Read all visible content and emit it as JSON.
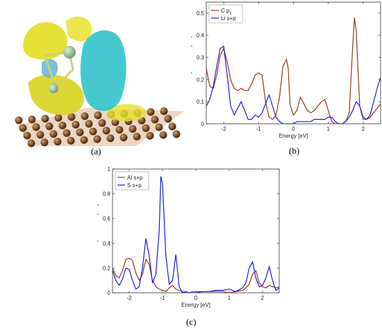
{
  "panel_labels": {
    "a": "(a)",
    "b": "(b)",
    "c": "(c)"
  },
  "colors": {
    "brown": "#8b3a1a",
    "blue": "#1a1ad6",
    "yellow": "#e6e000",
    "cyan": "#27c2c8",
    "atom": "#8a5a2c"
  },
  "chart_data": [
    {
      "id": "b",
      "type": "line",
      "xlabel": "Energy [eV]",
      "ylabel": "Density of states [a.u]",
      "xlim": [
        -2.5,
        2.5
      ],
      "ylim": [
        0,
        0.55
      ],
      "xticks": [
        "-2",
        "-1",
        "0",
        "1",
        "2"
      ],
      "xtick_values": [
        -2,
        -1,
        0,
        1,
        2
      ],
      "yticks": [
        "0",
        "0.1",
        "0.2",
        "0.3",
        "0.4",
        "0.5"
      ],
      "ytick_values": [
        0,
        0.1,
        0.2,
        0.3,
        0.4,
        0.5
      ],
      "legend_position": "top-left",
      "series": [
        {
          "name": "C p",
          "name_sub": "z",
          "color": "#8b3a1a",
          "x": [
            -2.5,
            -2.4,
            -2.3,
            -2.2,
            -2.1,
            -2.0,
            -1.9,
            -1.8,
            -1.7,
            -1.6,
            -1.5,
            -1.4,
            -1.3,
            -1.2,
            -1.1,
            -1.0,
            -0.9,
            -0.8,
            -0.7,
            -0.6,
            -0.5,
            -0.4,
            -0.3,
            -0.2,
            -0.15,
            -0.1,
            0.0,
            0.1,
            0.2,
            0.3,
            0.4,
            0.5,
            0.6,
            0.7,
            0.8,
            0.9,
            1.0,
            1.1,
            1.2,
            1.3,
            1.4,
            1.5,
            1.6,
            1.7,
            1.75,
            1.8,
            1.9,
            2.0,
            2.1,
            2.2,
            2.3,
            2.4,
            2.5
          ],
          "y": [
            0.25,
            0.17,
            0.16,
            0.22,
            0.31,
            0.34,
            0.28,
            0.2,
            0.16,
            0.15,
            0.16,
            0.15,
            0.15,
            0.18,
            0.22,
            0.23,
            0.22,
            0.1,
            0.03,
            0.02,
            0.04,
            0.12,
            0.26,
            0.29,
            0.25,
            0.09,
            0.04,
            0.06,
            0.12,
            0.09,
            0.06,
            0.05,
            0.06,
            0.08,
            0.1,
            0.11,
            0.06,
            0.01,
            0.0,
            0.0,
            0.0,
            0.01,
            0.05,
            0.35,
            0.48,
            0.42,
            0.08,
            0.02,
            0.02,
            0.03,
            0.05,
            0.07,
            0.09
          ]
        },
        {
          "name": "Li s+p",
          "color": "#1a1ad6",
          "x": [
            -2.5,
            -2.4,
            -2.3,
            -2.2,
            -2.1,
            -2.0,
            -1.9,
            -1.8,
            -1.7,
            -1.6,
            -1.5,
            -1.4,
            -1.3,
            -1.2,
            -1.1,
            -1.0,
            -0.9,
            -0.8,
            -0.7,
            -0.6,
            -0.5,
            -0.4,
            -0.3,
            -0.2,
            -0.1,
            0.0,
            0.1,
            0.2,
            0.3,
            0.4,
            0.5,
            0.6,
            0.7,
            0.8,
            0.9,
            1.0,
            1.1,
            1.2,
            1.3,
            1.4,
            1.5,
            1.6,
            1.7,
            1.8,
            1.9,
            2.0,
            2.1,
            2.2,
            2.3,
            2.4,
            2.5
          ],
          "y": [
            0.08,
            0.11,
            0.17,
            0.26,
            0.34,
            0.35,
            0.22,
            0.08,
            0.04,
            0.07,
            0.1,
            0.06,
            0.02,
            0.02,
            0.04,
            0.03,
            0.05,
            0.09,
            0.13,
            0.08,
            0.03,
            0.01,
            0.0,
            0.0,
            0.0,
            0.0,
            0.01,
            0.01,
            0.01,
            0.01,
            0.01,
            0.02,
            0.02,
            0.02,
            0.02,
            0.03,
            0.03,
            0.01,
            0.0,
            0.0,
            0.01,
            0.03,
            0.06,
            0.1,
            0.08,
            0.03,
            0.02,
            0.04,
            0.1,
            0.16,
            0.21
          ]
        }
      ]
    },
    {
      "id": "c",
      "type": "line",
      "xlabel": "Energy [eV]",
      "ylabel": "Density of states [a.u]",
      "xlim": [
        -2.5,
        2.5
      ],
      "ylim": [
        0,
        1.0
      ],
      "xticks": [
        "-2",
        "-1",
        "0",
        "1",
        "2"
      ],
      "xtick_values": [
        -2,
        -1,
        0,
        1,
        2
      ],
      "yticks": [
        "0",
        "0.2",
        "0.4",
        "0.6",
        "0.8",
        "1"
      ],
      "ytick_values": [
        0,
        0.2,
        0.4,
        0.6,
        0.8,
        1.0
      ],
      "legend_position": "top-left",
      "series": [
        {
          "name": "Al s+p",
          "color": "#8b3a1a",
          "x": [
            -2.5,
            -2.4,
            -2.3,
            -2.2,
            -2.1,
            -2.0,
            -1.9,
            -1.8,
            -1.7,
            -1.6,
            -1.5,
            -1.4,
            -1.3,
            -1.2,
            -1.1,
            -1.0,
            -0.9,
            -0.8,
            -0.7,
            -0.6,
            -0.5,
            -0.4,
            -0.3,
            -0.2,
            -0.1,
            0.0,
            0.2,
            0.4,
            0.6,
            0.8,
            1.0,
            1.2,
            1.4,
            1.5,
            1.6,
            1.7,
            1.8,
            1.9,
            2.0,
            2.1,
            2.2,
            2.3,
            2.4,
            2.5
          ],
          "y": [
            0.2,
            0.14,
            0.12,
            0.18,
            0.27,
            0.28,
            0.26,
            0.16,
            0.1,
            0.15,
            0.27,
            0.23,
            0.1,
            0.05,
            0.03,
            0.02,
            0.01,
            0.04,
            0.06,
            0.03,
            0.02,
            0.01,
            0.0,
            0.0,
            0.01,
            0.01,
            0.01,
            0.01,
            0.01,
            0.01,
            0.0,
            0.01,
            0.02,
            0.04,
            0.07,
            0.15,
            0.18,
            0.08,
            0.05,
            0.04,
            0.06,
            0.05,
            0.04,
            0.05
          ]
        },
        {
          "name": "S s+p",
          "color": "#1a1ad6",
          "x": [
            -2.5,
            -2.4,
            -2.3,
            -2.2,
            -2.1,
            -2.0,
            -1.9,
            -1.8,
            -1.7,
            -1.6,
            -1.5,
            -1.4,
            -1.3,
            -1.2,
            -1.1,
            -1.05,
            -1.0,
            -0.9,
            -0.8,
            -0.7,
            -0.6,
            -0.5,
            -0.4,
            -0.3,
            -0.2,
            -0.1,
            0.0,
            0.2,
            0.4,
            0.6,
            0.8,
            1.0,
            1.2,
            1.4,
            1.5,
            1.6,
            1.7,
            1.8,
            1.9,
            2.0,
            2.1,
            2.2,
            2.3,
            2.4,
            2.5
          ],
          "y": [
            0.18,
            0.1,
            0.06,
            0.11,
            0.2,
            0.19,
            0.1,
            0.03,
            0.05,
            0.2,
            0.44,
            0.3,
            0.08,
            0.15,
            0.5,
            0.94,
            0.88,
            0.3,
            0.07,
            0.1,
            0.31,
            0.05,
            0.0,
            0.01,
            0.0,
            0.0,
            0.0,
            0.01,
            0.01,
            0.02,
            0.02,
            0.03,
            0.01,
            0.04,
            0.08,
            0.2,
            0.25,
            0.12,
            0.05,
            0.06,
            0.12,
            0.21,
            0.1,
            0.02,
            0.04
          ]
        }
      ]
    }
  ]
}
